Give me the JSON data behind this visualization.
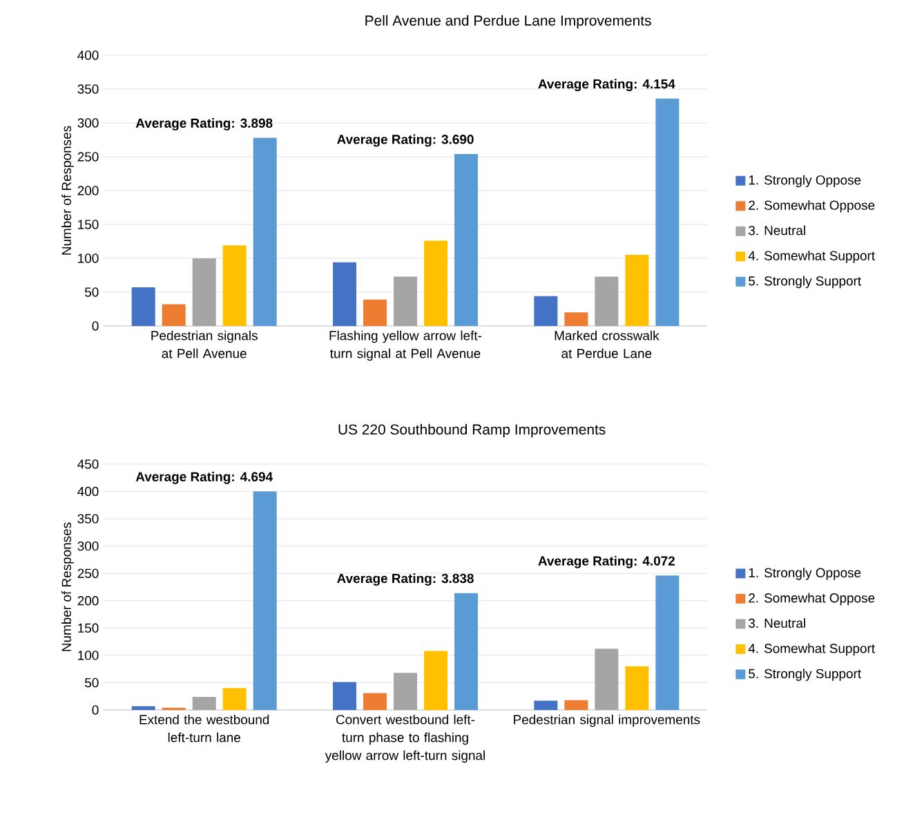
{
  "chart_data": [
    {
      "type": "bar",
      "title": "Pell Avenue and Perdue Lane Improvements",
      "ylabel": "Number of Responses",
      "categories": [
        "Pedestrian signals at Pell Avenue",
        "Flashing yellow arrow left-turn signal at Pell Avenue",
        "Marked crosswalk at Perdue Lane"
      ],
      "series": [
        {
          "name": "1. Strongly Oppose",
          "color": "#4472c4",
          "values": [
            57,
            94,
            44
          ]
        },
        {
          "name": "2. Somewhat Oppose",
          "color": "#ed7d31",
          "values": [
            32,
            39,
            20
          ]
        },
        {
          "name": "3. Neutral",
          "color": "#a5a5a5",
          "values": [
            100,
            73,
            73
          ]
        },
        {
          "name": "4. Somewhat Support",
          "color": "#ffc000",
          "values": [
            119,
            126,
            105
          ]
        },
        {
          "name": "5. Strongly Support",
          "color": "#5b9bd5",
          "values": [
            278,
            254,
            336
          ]
        }
      ],
      "ylim": [
        0,
        400
      ],
      "yticks": [
        0,
        50,
        100,
        150,
        200,
        250,
        300,
        350,
        400
      ],
      "grid": "y",
      "legend": "right",
      "annotations": [
        "Average Rating: 3.898",
        "Average Rating: 3.690",
        "Average Rating: 4.154"
      ]
    },
    {
      "type": "bar",
      "title": "US 220 Southbound Ramp Improvements",
      "ylabel": "Number of Responses",
      "categories": [
        "Extend the westbound left-turn lane",
        "Convert westbound left-turn phase to flashing yellow arrow left-turn signal",
        "Pedestrian signal improvements"
      ],
      "series": [
        {
          "name": "1. Strongly Oppose",
          "color": "#4472c4",
          "values": [
            7,
            51,
            17
          ]
        },
        {
          "name": "2. Somewhat Oppose",
          "color": "#ed7d31",
          "values": [
            4,
            31,
            18
          ]
        },
        {
          "name": "3. Neutral",
          "color": "#a5a5a5",
          "values": [
            24,
            68,
            112
          ]
        },
        {
          "name": "4. Somewhat Support",
          "color": "#ffc000",
          "values": [
            40,
            108,
            80
          ]
        },
        {
          "name": "5. Strongly Support",
          "color": "#5b9bd5",
          "values": [
            400,
            214,
            246
          ]
        }
      ],
      "ylim": [
        0,
        450
      ],
      "yticks": [
        0,
        50,
        100,
        150,
        200,
        250,
        300,
        350,
        400,
        450
      ],
      "grid": "y",
      "legend": "right",
      "annotations": [
        "Average Rating: 4.694",
        "Average Rating: 3.838",
        "Average Rating: 4.072"
      ]
    }
  ]
}
